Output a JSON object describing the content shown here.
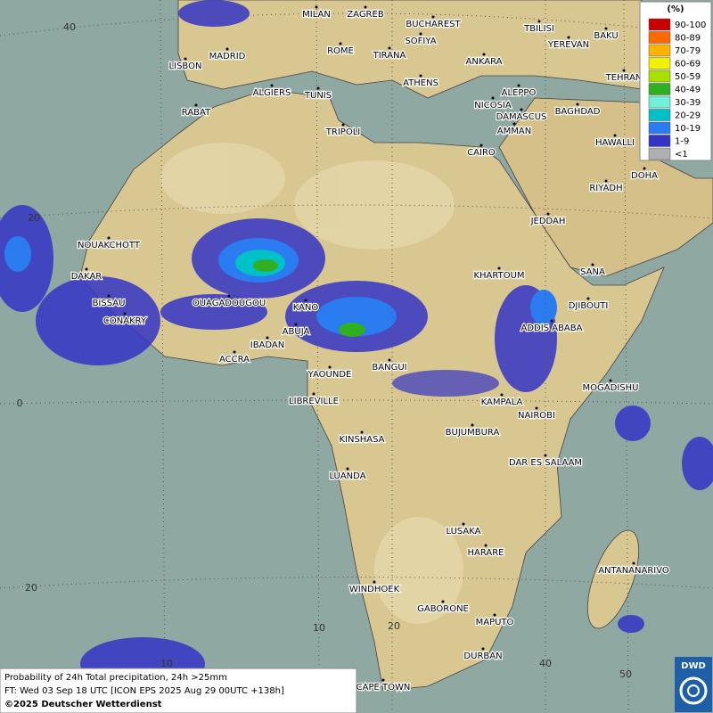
{
  "map": {
    "cities": [
      "MILAN",
      "ZAGREB",
      "BUCHAREST",
      "MADRID",
      "ROME",
      "SOFIYA",
      "TBILISI",
      "BAKU",
      "LISBON",
      "TIRANA",
      "ANKARA",
      "YEREVAN",
      "TEHRAN",
      "ALGIERS",
      "TUNIS",
      "ATHENS",
      "ALEPPO",
      "RABAT",
      "NICOSIA",
      "BAGHDAD",
      "TRIPOLI",
      "DAMASCUS",
      "AMMAN",
      "HAWALLI",
      "CAIRO",
      "DOHA",
      "RIYADH",
      "JEDDAH",
      "NOUAKCHOTT",
      "SANA",
      "DAKAR",
      "KHARTOUM",
      "BISSAU",
      "OUAGADOUGOU",
      "KANO",
      "DJIBOUTI",
      "CONAKRY",
      "ABUJA",
      "ADDIS ABABA",
      "IBADAN",
      "ACCRA",
      "BANGUI",
      "YAOUNDE",
      "MOGADISHU",
      "LIBREVILLE",
      "KAMPALA",
      "NAIROBI",
      "BUJUMBURA",
      "KINSHASA",
      "DAR ES SALAAM",
      "LUANDA",
      "LUSAKA",
      "HARARE",
      "ANTANANARIVO",
      "WINDHOEK",
      "GABORONE",
      "MAPUTO",
      "DURBAN",
      "CAPE TOWN"
    ],
    "lat_labels": [
      "40",
      "20",
      "0",
      "20"
    ],
    "lon_labels": [
      "10",
      "10",
      "20",
      "40",
      "50"
    ]
  },
  "legend": {
    "title": "(%)",
    "entries": [
      {
        "label": "90-100",
        "color": "#c80000"
      },
      {
        "label": "80-89",
        "color": "#ff6a00"
      },
      {
        "label": "70-79",
        "color": "#ffb400"
      },
      {
        "label": "60-69",
        "color": "#f0f000"
      },
      {
        "label": "50-59",
        "color": "#a8e000"
      },
      {
        "label": "40-49",
        "color": "#30b020"
      },
      {
        "label": "30-39",
        "color": "#70f0d8"
      },
      {
        "label": "20-29",
        "color": "#00c0c8"
      },
      {
        "label": "10-19",
        "color": "#2a7cf0"
      },
      {
        "label": "1-9",
        "color": "#3434c4"
      },
      {
        "label": "<1",
        "color": "#b0b0b0"
      }
    ]
  },
  "info": {
    "line1": "Probability of 24h Total precipitation, 24h >25mm",
    "line2": "FT: Wed 03 Sep 18 UTC [ICON EPS 2025 Aug 29 00UTC +138h]",
    "line3": "©2025 Deutscher Wetterdienst"
  },
  "logo": "DWD"
}
